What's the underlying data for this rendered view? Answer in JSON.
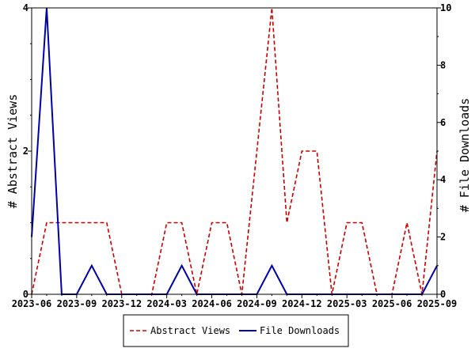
{
  "chart_data": {
    "type": "line",
    "x": [
      "2023-06",
      "2023-07",
      "2023-08",
      "2023-09",
      "2023-10",
      "2023-11",
      "2023-12",
      "2024-01",
      "2024-02",
      "2024-03",
      "2024-04",
      "2024-05",
      "2024-06",
      "2024-07",
      "2024-08",
      "2024-09",
      "2024-10",
      "2024-11",
      "2024-12",
      "2025-01",
      "2025-02",
      "2025-03",
      "2025-04",
      "2025-05",
      "2025-06",
      "2025-07",
      "2025-08",
      "2025-09"
    ],
    "x_tick_labels": [
      "2023-06",
      "2023-09",
      "2023-12",
      "2024-03",
      "2024-06",
      "2024-09",
      "2024-12",
      "2025-03",
      "2025-06",
      "2025-09"
    ],
    "series": [
      {
        "name": "Abstract Views",
        "axis": "left",
        "color": "#cc0000",
        "dash": true,
        "values": [
          0,
          1,
          1,
          1,
          1,
          1,
          0,
          0,
          0,
          1,
          1,
          0,
          1,
          1,
          0,
          2,
          4,
          1,
          2,
          2,
          0,
          1,
          1,
          0,
          0,
          1,
          0,
          2
        ]
      },
      {
        "name": "File Downloads",
        "axis": "right",
        "color": "#0000aa",
        "dash": false,
        "values": [
          2,
          10,
          0,
          0,
          1,
          0,
          0,
          0,
          0,
          0,
          1,
          0,
          0,
          0,
          0,
          0,
          1,
          0,
          0,
          0,
          0,
          0,
          0,
          0,
          0,
          0,
          0,
          1
        ]
      }
    ],
    "ylabel": "# Abstract Views",
    "y2label": "# File Downloads",
    "ylim": [
      0,
      4
    ],
    "y_ticks": [
      0,
      2,
      4
    ],
    "y2lim": [
      0,
      10
    ],
    "y2_ticks": [
      0,
      2,
      4,
      6,
      8,
      10
    ],
    "grid": false,
    "legend_position": "bottom-center"
  }
}
